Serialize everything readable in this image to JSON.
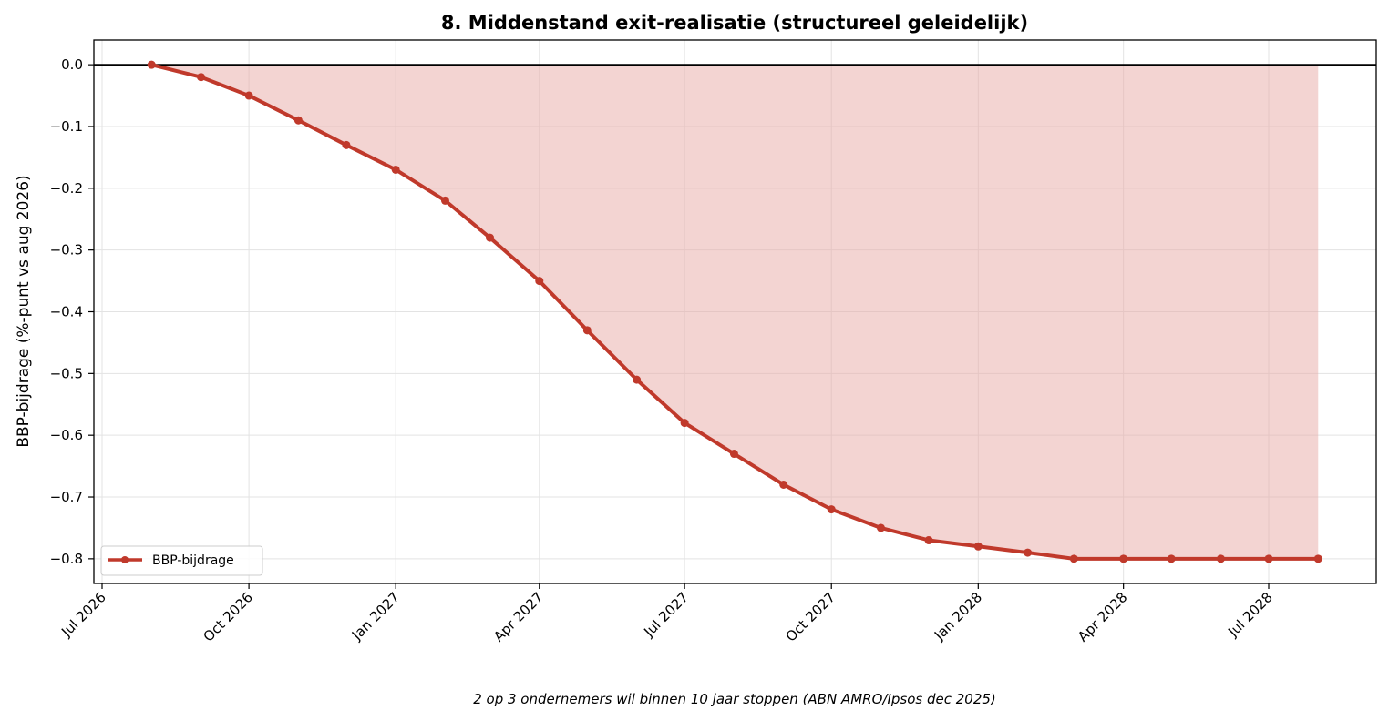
{
  "chart_data": {
    "type": "line",
    "title": "8. Middenstand exit-realisatie (structureel geleidelijk)",
    "ylabel": "BBP-bijdrage (%-punt vs aug 2026)",
    "xlabel": "",
    "caption": "2 op 3 ondernemers wil binnen 10 jaar stoppen (ABN AMRO/Ipsos dec 2025)",
    "x_start": "2026-07-01",
    "x_end": "2028-10-01",
    "ylim": [
      -0.84,
      0.04
    ],
    "y_ticks": [
      0.0,
      -0.1,
      -0.2,
      -0.3,
      -0.4,
      -0.5,
      -0.6,
      -0.7,
      -0.8
    ],
    "y_tick_labels": [
      "0.0",
      "−0.1",
      "−0.2",
      "−0.3",
      "−0.4",
      "−0.5",
      "−0.6",
      "−0.7",
      "−0.8"
    ],
    "x_ticks": [
      {
        "date": "2026-07-01",
        "label": "Jul 2026"
      },
      {
        "date": "2026-10-01",
        "label": "Oct 2026"
      },
      {
        "date": "2027-01-01",
        "label": "Jan 2027"
      },
      {
        "date": "2027-04-01",
        "label": "Apr 2027"
      },
      {
        "date": "2027-07-01",
        "label": "Jul 2027"
      },
      {
        "date": "2027-10-01",
        "label": "Oct 2027"
      },
      {
        "date": "2028-01-01",
        "label": "Jan 2028"
      },
      {
        "date": "2028-04-01",
        "label": "Apr 2028"
      },
      {
        "date": "2028-07-01",
        "label": "Jul 2028"
      }
    ],
    "grid": true,
    "legend_position": "lower-left",
    "series": [
      {
        "name": "BBP-bijdrage",
        "color": "#c0392b",
        "fill_color": "#e8aaa6",
        "x": [
          "2026-08-01",
          "2026-09-01",
          "2026-10-01",
          "2026-11-01",
          "2026-12-01",
          "2027-01-01",
          "2027-02-01",
          "2027-03-01",
          "2027-04-01",
          "2027-05-01",
          "2027-06-01",
          "2027-07-01",
          "2027-08-01",
          "2027-09-01",
          "2027-10-01",
          "2027-11-01",
          "2027-12-01",
          "2028-01-01",
          "2028-02-01",
          "2028-03-01",
          "2028-04-01",
          "2028-05-01",
          "2028-06-01",
          "2028-07-01",
          "2028-08-01"
        ],
        "values": [
          0.0,
          -0.02,
          -0.05,
          -0.09,
          -0.13,
          -0.17,
          -0.22,
          -0.28,
          -0.35,
          -0.43,
          -0.51,
          -0.58,
          -0.63,
          -0.68,
          -0.72,
          -0.75,
          -0.77,
          -0.78,
          -0.79,
          -0.8,
          -0.8,
          -0.8,
          -0.8,
          -0.8,
          -0.8
        ]
      }
    ]
  }
}
